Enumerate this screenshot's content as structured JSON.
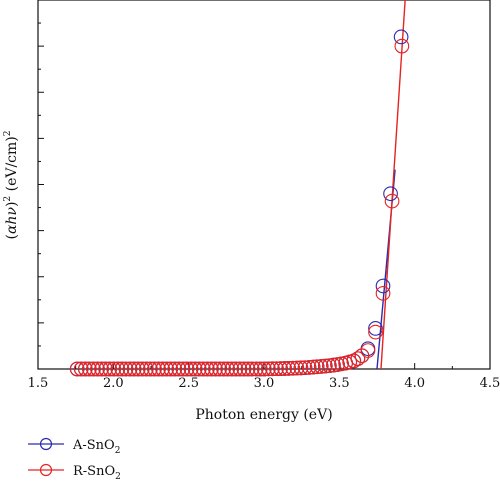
{
  "chart_data": {
    "type": "scatter",
    "xlabel": "Photon energy (eV)",
    "ylabel_parts": [
      "(",
      "αhν",
      ")",
      "2",
      " (eV/cm)",
      "2"
    ],
    "xlim": [
      1.5,
      4.5
    ],
    "ylim": [
      0,
      1
    ],
    "x_ticks": [
      1.5,
      2.0,
      2.5,
      3.0,
      3.5,
      4.0,
      4.5
    ],
    "x_tick_labels": [
      "1.5",
      "2.0",
      "2.5",
      "3.0",
      "3.5",
      "4.0",
      "4.5"
    ],
    "y_ticks_unlabeled": true,
    "grid": false,
    "legend_position": "bottom-left",
    "series": [
      {
        "name_base": "A-SnO",
        "name_sub": "2",
        "color": "#2b2bb0",
        "x": [
          1.76,
          1.787,
          1.814,
          1.841,
          1.868,
          1.895,
          1.922,
          1.949,
          1.976,
          2.003,
          2.03,
          2.057,
          2.084,
          2.111,
          2.138,
          2.165,
          2.192,
          2.219,
          2.246,
          2.273,
          2.3,
          2.327,
          2.354,
          2.381,
          2.408,
          2.435,
          2.462,
          2.489,
          2.516,
          2.543,
          2.57,
          2.597,
          2.624,
          2.651,
          2.678,
          2.705,
          2.732,
          2.759,
          2.786,
          2.813,
          2.84,
          2.867,
          2.894,
          2.921,
          2.948,
          2.975,
          3.002,
          3.029,
          3.056,
          3.083,
          3.11,
          3.137,
          3.164,
          3.191,
          3.218,
          3.245,
          3.272,
          3.299,
          3.326,
          3.353,
          3.38,
          3.407,
          3.434,
          3.461,
          3.488,
          3.515,
          3.542,
          3.569,
          3.596,
          3.623,
          3.65,
          3.69,
          3.74,
          3.79,
          3.84,
          3.91
        ],
        "y": [
          0,
          0,
          0,
          0,
          0,
          0,
          0,
          0,
          0,
          0,
          0,
          0,
          0,
          0,
          0,
          0,
          0,
          0,
          0,
          0,
          0,
          0,
          0,
          0,
          0,
          0,
          0,
          0,
          0,
          0,
          0,
          0,
          0,
          0,
          0,
          0,
          0,
          0,
          0,
          0,
          0,
          0,
          0,
          0,
          0,
          0,
          0,
          0.0004,
          0.0006,
          0.0008,
          0.001,
          0.0013,
          0.0016,
          0.002,
          0.0025,
          0.003,
          0.0036,
          0.0043,
          0.0051,
          0.006,
          0.007,
          0.008,
          0.009,
          0.0105,
          0.012,
          0.014,
          0.016,
          0.019,
          0.022,
          0.028,
          0.036,
          0.055,
          0.11,
          0.225,
          0.475,
          0.9
        ]
      },
      {
        "name_base": "R-SnO",
        "name_sub": "2",
        "color": "#e52421",
        "x": [
          1.76,
          1.787,
          1.814,
          1.841,
          1.868,
          1.895,
          1.922,
          1.949,
          1.976,
          2.003,
          2.03,
          2.057,
          2.084,
          2.111,
          2.138,
          2.165,
          2.192,
          2.219,
          2.246,
          2.273,
          2.3,
          2.327,
          2.354,
          2.381,
          2.408,
          2.435,
          2.462,
          2.489,
          2.516,
          2.543,
          2.57,
          2.597,
          2.624,
          2.651,
          2.678,
          2.705,
          2.732,
          2.759,
          2.786,
          2.813,
          2.84,
          2.867,
          2.894,
          2.921,
          2.948,
          2.975,
          3.002,
          3.029,
          3.056,
          3.083,
          3.11,
          3.137,
          3.164,
          3.191,
          3.218,
          3.245,
          3.272,
          3.299,
          3.326,
          3.353,
          3.38,
          3.407,
          3.434,
          3.461,
          3.488,
          3.515,
          3.542,
          3.569,
          3.596,
          3.623,
          3.65,
          3.69,
          3.74,
          3.79,
          3.85,
          3.915
        ],
        "y": [
          0,
          0,
          0,
          0,
          0,
          0,
          0,
          0,
          0,
          0,
          0,
          0,
          0,
          0,
          0,
          0,
          0,
          0,
          0,
          0,
          0,
          0,
          0,
          0,
          0,
          0,
          0,
          0,
          0,
          0,
          0,
          0,
          0,
          0,
          0,
          0,
          0,
          0,
          0,
          0,
          0,
          0,
          0,
          0,
          0,
          0,
          0,
          0.0004,
          0.0006,
          0.0008,
          0.001,
          0.0013,
          0.0016,
          0.002,
          0.0025,
          0.003,
          0.0036,
          0.0043,
          0.0051,
          0.006,
          0.007,
          0.008,
          0.009,
          0.0105,
          0.012,
          0.014,
          0.016,
          0.019,
          0.022,
          0.028,
          0.036,
          0.05,
          0.1,
          0.205,
          0.455,
          0.875
        ]
      }
    ],
    "fit_lines": [
      {
        "series": "A-SnO2",
        "color": "#2b2bb0",
        "x": [
          3.75,
          3.87
        ],
        "y": [
          0,
          0.54
        ]
      },
      {
        "series": "R-SnO2",
        "color": "#e52421",
        "x": [
          3.77,
          3.94
        ],
        "y": [
          -0.04,
          1.02
        ]
      }
    ]
  }
}
